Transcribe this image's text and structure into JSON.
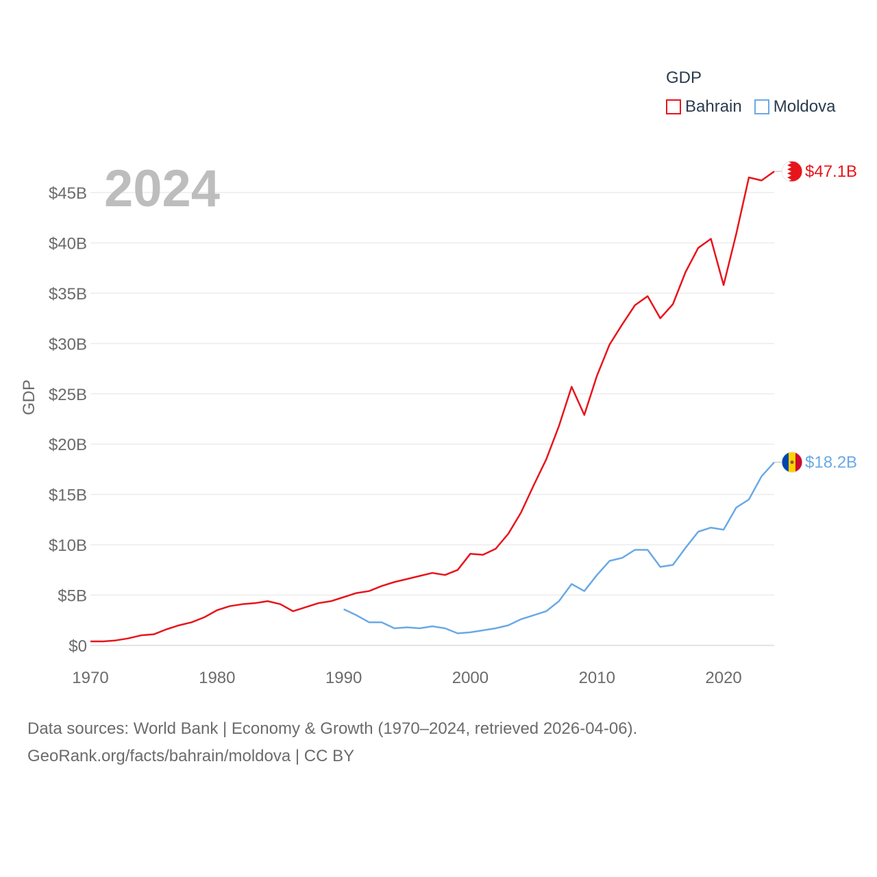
{
  "legend": {
    "title": "GDP",
    "items": [
      {
        "label": "Bahrain",
        "color": "#e8141b"
      },
      {
        "label": "Moldova",
        "color": "#6aa9e6"
      }
    ]
  },
  "year_label": "2024",
  "footer": {
    "line1": "Data sources: World Bank | Economy & Growth (1970–2024, retrieved 2026-04-06).",
    "line2": "GeoRank.org/facts/bahrain/moldova | CC BY"
  },
  "chart_data": {
    "type": "line",
    "title": "",
    "xlabel": "",
    "ylabel": "GDP",
    "xlim": [
      1970,
      2024
    ],
    "ylim": [
      0,
      45
    ],
    "x_ticks": [
      1970,
      1980,
      1990,
      2000,
      2010,
      2020
    ],
    "y_ticks": [
      0,
      5,
      10,
      15,
      20,
      25,
      30,
      35,
      40,
      45
    ],
    "y_tick_labels": [
      "$0",
      "$5B",
      "$10B",
      "$15B",
      "$20B",
      "$25B",
      "$30B",
      "$35B",
      "$40B",
      "$45B"
    ],
    "grid": true,
    "series": [
      {
        "name": "Bahrain",
        "color": "#e8141b",
        "end_label": "$47.1B",
        "flag": "bahrain-flag",
        "x": [
          1970,
          1971,
          1972,
          1973,
          1974,
          1975,
          1976,
          1977,
          1978,
          1979,
          1980,
          1981,
          1982,
          1983,
          1984,
          1985,
          1986,
          1987,
          1988,
          1989,
          1990,
          1991,
          1992,
          1993,
          1994,
          1995,
          1996,
          1997,
          1998,
          1999,
          2000,
          2001,
          2002,
          2003,
          2004,
          2005,
          2006,
          2007,
          2008,
          2009,
          2010,
          2011,
          2012,
          2013,
          2014,
          2015,
          2016,
          2017,
          2018,
          2019,
          2020,
          2021,
          2022,
          2023,
          2024
        ],
        "values": [
          0.4,
          0.4,
          0.5,
          0.7,
          1.0,
          1.1,
          1.6,
          2.0,
          2.3,
          2.8,
          3.5,
          3.9,
          4.1,
          4.2,
          4.4,
          4.1,
          3.4,
          3.8,
          4.2,
          4.4,
          4.8,
          5.2,
          5.4,
          5.9,
          6.3,
          6.6,
          6.9,
          7.2,
          7.0,
          7.5,
          9.1,
          9.0,
          9.6,
          11.1,
          13.2,
          15.9,
          18.5,
          21.8,
          25.7,
          22.9,
          26.8,
          29.9,
          31.9,
          33.8,
          34.7,
          32.5,
          33.9,
          37.1,
          39.5,
          40.4,
          35.8,
          40.9,
          46.5,
          46.2,
          47.1
        ]
      },
      {
        "name": "Moldova",
        "color": "#6aa9e6",
        "end_label": "$18.2B",
        "flag": "moldova-flag",
        "x": [
          1990,
          1991,
          1992,
          1993,
          1994,
          1995,
          1996,
          1997,
          1998,
          1999,
          2000,
          2001,
          2002,
          2003,
          2004,
          2005,
          2006,
          2007,
          2008,
          2009,
          2010,
          2011,
          2012,
          2013,
          2014,
          2015,
          2016,
          2017,
          2018,
          2019,
          2020,
          2021,
          2022,
          2023,
          2024
        ],
        "values": [
          3.6,
          3.0,
          2.3,
          2.3,
          1.7,
          1.8,
          1.7,
          1.9,
          1.7,
          1.2,
          1.3,
          1.5,
          1.7,
          2.0,
          2.6,
          3.0,
          3.4,
          4.4,
          6.1,
          5.4,
          7.0,
          8.4,
          8.7,
          9.5,
          9.5,
          7.8,
          8.0,
          9.7,
          11.3,
          11.7,
          11.5,
          13.7,
          14.5,
          16.8,
          18.2
        ]
      }
    ]
  }
}
